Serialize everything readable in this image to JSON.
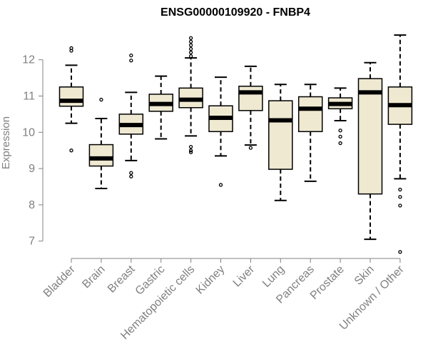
{
  "chart_data": {
    "type": "boxplot",
    "title": "ENSG00000109920 - FNBP4",
    "xlabel": "",
    "ylabel": "Expression",
    "ylim": [
      6.6,
      12.9
    ],
    "yticks": [
      7,
      8,
      9,
      10,
      11,
      12
    ],
    "grid": false,
    "box_color": "#efe9d2",
    "line_color": "#000000",
    "axis_color": "#808080",
    "categories": [
      "Bladder",
      "Brain",
      "Breast",
      "Gastric",
      "Hematopoietic cells",
      "Kidney",
      "Liver",
      "Lung",
      "Pancreas",
      "Prostate",
      "Skin",
      "Unknown / Other"
    ],
    "boxes": [
      {
        "name": "Bladder",
        "whisker_low": 10.25,
        "q1": 10.72,
        "median": 10.87,
        "q3": 11.25,
        "whisker_high": 11.85,
        "outliers": [
          12.25,
          12.32,
          9.5
        ]
      },
      {
        "name": "Brain",
        "whisker_low": 8.45,
        "q1": 9.07,
        "median": 9.28,
        "q3": 9.66,
        "whisker_high": 10.38,
        "outliers": [
          10.9
        ]
      },
      {
        "name": "Breast",
        "whisker_low": 9.22,
        "q1": 9.95,
        "median": 10.2,
        "q3": 10.5,
        "whisker_high": 11.1,
        "outliers": [
          12.12,
          11.98,
          8.88,
          8.78
        ]
      },
      {
        "name": "Gastric",
        "whisker_low": 9.82,
        "q1": 10.58,
        "median": 10.78,
        "q3": 11.05,
        "whisker_high": 11.55,
        "outliers": []
      },
      {
        "name": "Hematopoietic cells",
        "whisker_low": 9.9,
        "q1": 10.68,
        "median": 10.9,
        "q3": 11.22,
        "whisker_high": 12.05,
        "outliers": [
          12.6,
          12.5,
          12.4,
          12.3,
          12.2,
          12.1,
          9.6,
          9.5,
          9.45
        ]
      },
      {
        "name": "Kidney",
        "whisker_low": 9.35,
        "q1": 10.02,
        "median": 10.4,
        "q3": 10.73,
        "whisker_high": 11.52,
        "outliers": [
          8.55
        ]
      },
      {
        "name": "Liver",
        "whisker_low": 9.65,
        "q1": 10.6,
        "median": 11.1,
        "q3": 11.27,
        "whisker_high": 11.82,
        "outliers": [
          9.57
        ]
      },
      {
        "name": "Lung",
        "whisker_low": 8.12,
        "q1": 8.98,
        "median": 10.33,
        "q3": 10.87,
        "whisker_high": 11.32,
        "outliers": []
      },
      {
        "name": "Pancreas",
        "whisker_low": 8.65,
        "q1": 10.02,
        "median": 10.65,
        "q3": 10.98,
        "whisker_high": 11.32,
        "outliers": []
      },
      {
        "name": "Prostate",
        "whisker_low": 10.32,
        "q1": 10.65,
        "median": 10.78,
        "q3": 10.95,
        "whisker_high": 11.22,
        "outliers": [
          10.05,
          9.88,
          9.7
        ]
      },
      {
        "name": "Skin",
        "whisker_low": 7.05,
        "q1": 8.3,
        "median": 11.1,
        "q3": 11.48,
        "whisker_high": 11.92,
        "outliers": []
      },
      {
        "name": "Unknown / Other",
        "whisker_low": 8.72,
        "q1": 10.22,
        "median": 10.75,
        "q3": 11.25,
        "whisker_high": 12.68,
        "outliers": [
          8.42,
          8.22,
          7.98,
          6.7
        ]
      }
    ]
  }
}
